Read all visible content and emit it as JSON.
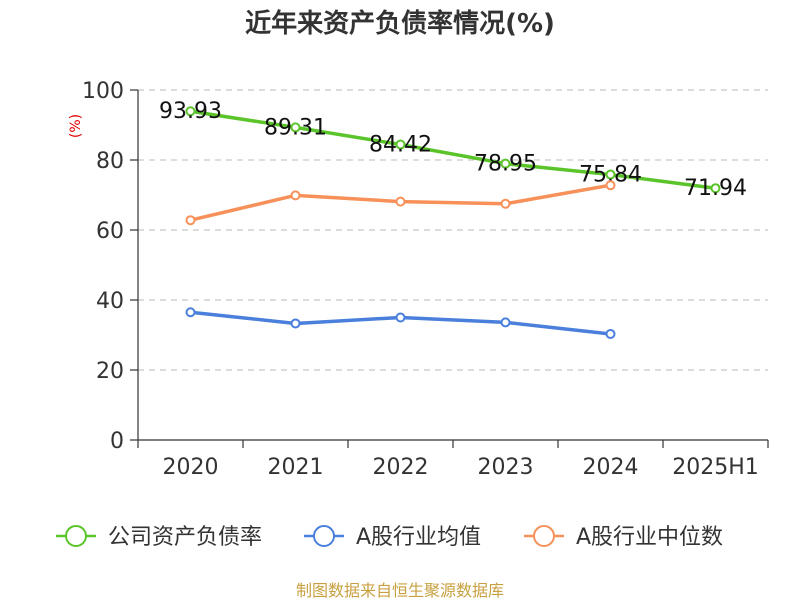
{
  "chart_data": {
    "type": "line",
    "title": "近年来资产负债率情况(%)",
    "ylabel": "(%)",
    "ylim": [
      0,
      100
    ],
    "yticks": [
      0,
      20,
      40,
      60,
      80,
      100
    ],
    "categories": [
      "2020",
      "2021",
      "2022",
      "2023",
      "2024",
      "2025H1"
    ],
    "grid": true,
    "legend_position": "bottom",
    "series": [
      {
        "name": "公司资产负债率",
        "color": "#5bc42a",
        "values": [
          93.93,
          89.31,
          84.42,
          78.95,
          75.84,
          71.94
        ],
        "labels": [
          "93.93",
          "89.31",
          "84.42",
          "78.95",
          "75.84",
          "71.94"
        ]
      },
      {
        "name": "A股行业均值",
        "color": "#4a7fdc",
        "values": [
          36.5,
          33.3,
          35.0,
          33.6,
          30.3,
          null
        ]
      },
      {
        "name": "A股行业中位数",
        "color": "#f79059",
        "values": [
          62.8,
          69.9,
          68.1,
          67.5,
          72.8,
          null
        ]
      }
    ],
    "source": "制图数据来自恒生聚源数据库"
  }
}
